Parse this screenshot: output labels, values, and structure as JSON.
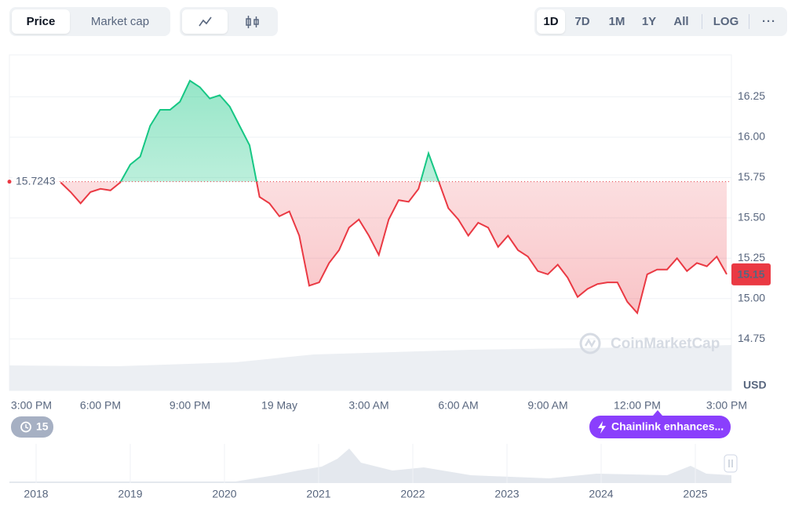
{
  "toolbar": {
    "tabs": [
      "Price",
      "Market cap"
    ],
    "ranges": [
      "1D",
      "7D",
      "1M",
      "1Y",
      "All"
    ],
    "scale": "LOG"
  },
  "chart_data": {
    "type": "line",
    "categories": [
      "3:00 PM",
      null,
      null,
      null,
      null,
      null,
      null,
      null,
      null,
      "6:00 PM",
      null,
      null,
      null,
      null,
      null,
      null,
      null,
      null,
      "9:00 PM",
      null,
      null,
      null,
      null,
      null,
      null,
      null,
      null,
      "19 May",
      null,
      null,
      null,
      null,
      null,
      null,
      null,
      null,
      "3:00 AM",
      null,
      null,
      null,
      null,
      null,
      null,
      null,
      null,
      "6:00 AM",
      null,
      null,
      null,
      null,
      null,
      null,
      null,
      null,
      "9:00 AM",
      null,
      null,
      null,
      null,
      null,
      null,
      null,
      null,
      "12:00 PM",
      null,
      null,
      null,
      null,
      null,
      null,
      null,
      null,
      "3:00 PM"
    ],
    "values": [
      null,
      null,
      null,
      null,
      null,
      15.72,
      15.66,
      15.59,
      15.66,
      15.68,
      15.67,
      15.72,
      15.83,
      15.88,
      16.07,
      16.17,
      16.17,
      16.22,
      16.35,
      16.31,
      16.24,
      16.26,
      16.19,
      16.07,
      15.95,
      15.63,
      15.59,
      15.51,
      15.54,
      15.39,
      15.08,
      15.1,
      15.22,
      15.3,
      15.44,
      15.49,
      15.39,
      15.27,
      15.49,
      15.61,
      15.6,
      15.68,
      15.9,
      15.73,
      15.56,
      15.49,
      15.39,
      15.47,
      15.44,
      15.32,
      15.39,
      15.3,
      15.26,
      15.17,
      15.15,
      15.21,
      15.13,
      15.01,
      15.06,
      15.09,
      15.1,
      15.1,
      14.98,
      14.91,
      15.15,
      15.18,
      15.18,
      15.25,
      15.17,
      15.22,
      15.2,
      15.26,
      15.15
    ],
    "baseline": 15.7243,
    "up_color": "#16c784",
    "down_color": "#ea3943",
    "ylim": [
      14.43,
      16.51
    ],
    "yticks": [
      14.75,
      {
        "value": 15,
        "label": "15.00"
      },
      15.25,
      {
        "value": 15.5,
        "label": "15.50"
      },
      15.75,
      {
        "value": 16,
        "label": "16.00"
      },
      16.25
    ],
    "grid": true,
    "currency": "USD",
    "watermark": "CoinMarketCap",
    "alert_count": "15",
    "event": "Chainlink enhances..."
  },
  "navigator": {
    "years": [
      2018,
      2019,
      2020,
      2021,
      2022,
      2023,
      2024,
      2025
    ]
  }
}
